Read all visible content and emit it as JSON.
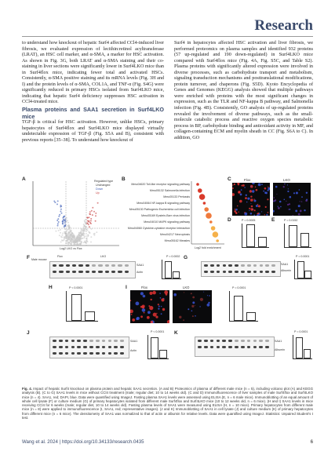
{
  "header": {
    "journal": "Research"
  },
  "body": {
    "col1_p1": "to understand how knockout of hepatic Surf4 affected CCl4-induced liver fibrosis, we evaluated expression of lecithin:retinol acyltransferase (LRAT), an HSC cell marker, and α-SMA, a marker for HSC activation. As shown in Fig. 3G, both LRAT and α-SMA staining and their co-staining in liver sections were significantly lower in Surf4LKO mice than in Surf4flox mice, indicating fewer total and activated HSCs. Consistently, α-SMA positive staining and its mRNA levels (Fig. 3H and I) and the protein levels of α-SMA, COL1A, and TNF-α (Fig. S4G) were significantly reduced in primary HSCs isolated from Surf4LKO mice, indicating that hepatic Surf4 deficiency suppresses HSC activation in CCl4-treated mice.",
    "col1_heading": "Plasma proteins and SAA1 secretion in Surf4LKO mice",
    "col1_p2": "TGF-β is critical for HSC activation. However, unlike HSCs, primary hepatocytes of Surf4flox and Surf4LKO mice displayed virtually undetectable expression of TGF-β (Fig. S5A and B), consistent with previous reports [35–38]. To understand how knockout of",
    "col2_p1": "Surf4 in hepatocytes affected HSC activation and liver fibrosis, we performed proteomics on plasma samples and identified 932 proteins (57 up-regulated and 190 down-regulated) in Surf4LKO mice compared with Surf4flox mice (Fig. 4A, Fig. S5C, and Table S2). Plasma proteins with significantly altered expression were involved in diverse processes, such as carbohydrate transport and metabolism, signaling transduction mechanisms and posttranslational modifications, protein turnover, and chaperons (Fig. S5D). Kyoto Encyclopedia of Genes and Genomes (KEGG) analysis showed that multiple pathways were enriched with proteins with the most significant changes in expression, such as the TLR and NF-kappa B pathway, and Salmonella infection (Fig. 4B). Consistently, GO analysis of up-regulated proteins revealed the involvement of diverse pathways, such as the small-molecule catabolic process and reactive oxygen species metabolic process in BP, carbohydrate binding and antioxidant activity in MF, and collagen-containing ECM and myelin sheath in CC (Fig. S6A to C). In addition, GO"
  },
  "figure": {
    "panels": [
      "A",
      "B",
      "C",
      "D",
      "E",
      "F",
      "G",
      "H",
      "I",
      "J",
      "K"
    ],
    "groups": [
      "Flox",
      "LKO"
    ],
    "volcano_legend": [
      "Regulated type",
      "Unchanged",
      "Down",
      "Up"
    ],
    "volcano_xlabel": "Log2 LKO vs Flox",
    "kegg_terms": [
      "Mmu04620 Toll-like receptor signaling pathway",
      "Mmu05132 Salmonella infection",
      "Mmu05133 Pertussis",
      "Mmu04064 NF-kappa B signaling pathway",
      "Mmu05130 Pathogenic Escherichia coli infection",
      "Mmu05169 Epstein-Barr virus infection",
      "Mmu04010 MAPK signaling pathway",
      "Mmu04060 Cytokine-cytokine receptor interaction",
      "Mmu04217 Necroptosis",
      "Mmu05162 Measles"
    ],
    "kegg_xlabel": "Log2 fold enrichment",
    "d_ylabel": "SAA fluorescence intensity (AU)",
    "e_ylabel": "Plasma SAA1 (μg/ml)",
    "h_ylabel": "Plasma SAA1 (μg/ml)",
    "pvals": {
      "D": "P = 0.0005",
      "E": "P = 0.0152",
      "F": "P = 0.0002",
      "G": "P = 0.0001",
      "H": "P < 0.0001",
      "I": "P = 0.0001",
      "J": "P < 0.0001",
      "K": "P = 0.0001"
    },
    "blot_labels": {
      "saa1": "SAA1",
      "actin": "Actin",
      "albumin": "Albumin",
      "male_mouse": "Male mouse",
      "kda": "kDa"
    }
  },
  "caption": {
    "label": "Fig. 4.",
    "text": " Impact of hepatic Surf4 knockout on plasma protein and hepatic SAA1 secretion. (A and B) Proteomics of plasma of different male mice (n = 5), including volcano plot (A) and KEGG analysis (B). (C to G) SAA1 levels in mice without CCl4 treatment (male; regular diet; 10 to 14 weeks old). (C and D) Immunofluorescence of liver samples of male Surf4flox and Surf4LKO mice (n = 4). SAA1, red; DAPI, blue. Data were quantified using ImageJ. Fasting plasma SAA1 levels were assessed using ELISA (E, n = 6 male mice). Immunoblotting of an equal amount of whole cell lysate (F) or culture medium (G) of primary hepatocytes isolated from different male Surf4flox and Surf4LKO mice (10 to 12 weeks old, n = 6 mice). (H and I) SAA1 levels in mice receiving CCl4 for 6 weeks (male; regular diet, 10 to 14 weeks old). Fasting plasma levels of SAA1 were measured using ELISA (H, n = 10 mice). Primary hepatocytes from different male mice (n = 8) were applied to immunofluorescence (I, SAA1, red; representative images). (J and K) Immunoblotting of SAA1 in cell lysate (J) and culture medium (K) of primary hepatocytes from different mice (n = 6 mice). The densitometry of SAA1 was normalized to that of actin or albumin for relative levels. Data were quantified using ImageJ. Statistics: Unpaired Student's t test."
  },
  "footer": {
    "citation": "Wang et al. 2024 | https://doi.org/10.34133/research.0435",
    "page": "6"
  }
}
